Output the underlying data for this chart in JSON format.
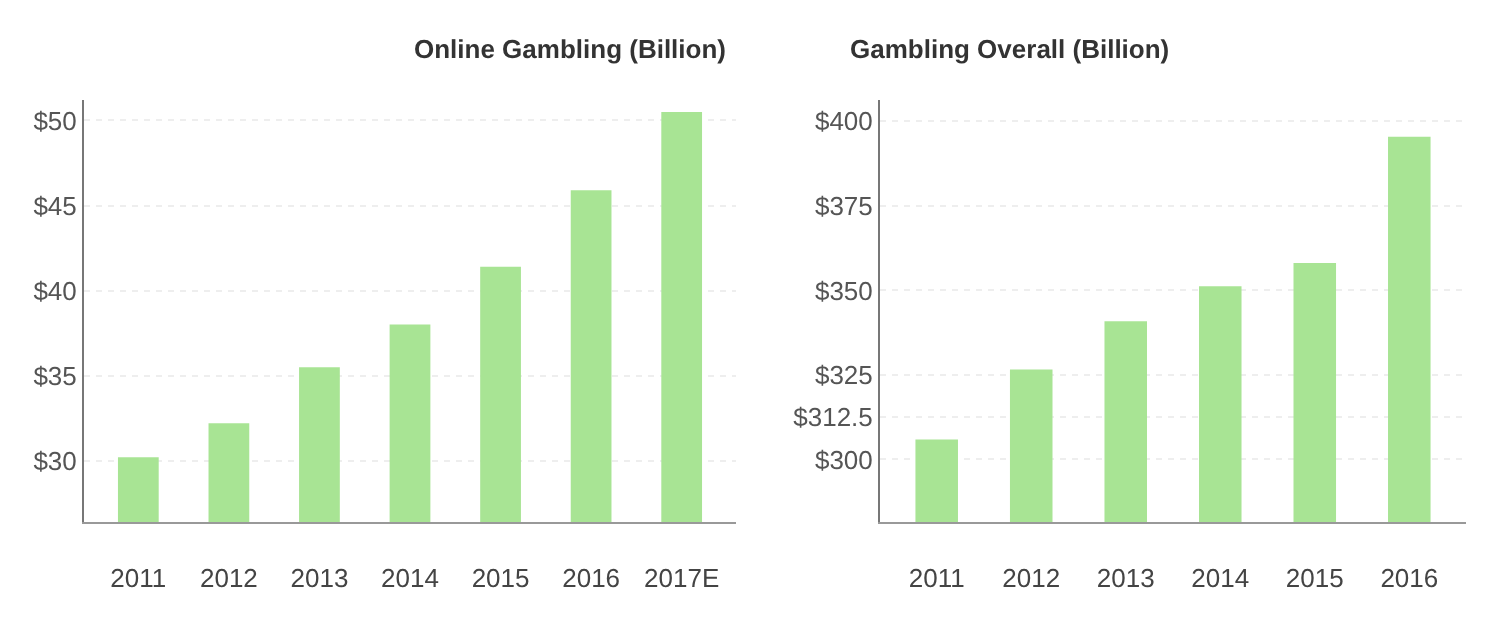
{
  "chart_data": [
    {
      "type": "bar",
      "title": "Online Gambling (Billion)",
      "categories": [
        "2011",
        "2012",
        "2013",
        "2014",
        "2015",
        "2016",
        "2017E"
      ],
      "values": [
        30.2,
        32.2,
        35.5,
        38.0,
        41.4,
        45.9,
        50.5
      ],
      "color": "#a8e494",
      "ylim": [
        26.4,
        51.2
      ],
      "yticks": [
        {
          "value": 30,
          "label": "$30"
        },
        {
          "value": 35,
          "label": "$35"
        },
        {
          "value": 40,
          "label": "$40"
        },
        {
          "value": 45,
          "label": "$45"
        },
        {
          "value": 50,
          "label": "$50"
        }
      ],
      "grid": "y",
      "legend": false
    },
    {
      "type": "bar",
      "title": "Gambling Overall (Billion)",
      "categories": [
        "2011",
        "2012",
        "2013",
        "2014",
        "2015",
        "2016"
      ],
      "values": [
        305.9,
        326.6,
        340.9,
        351.2,
        358.1,
        395.4
      ],
      "color": "#a8e494",
      "ylim": [
        281.5,
        406.3
      ],
      "yticks": [
        {
          "value": 300,
          "label": "$300"
        },
        {
          "value": 312.5,
          "label": "$312.5"
        },
        {
          "value": 325,
          "label": "$325"
        },
        {
          "value": 350,
          "label": "$350"
        },
        {
          "value": 375,
          "label": "$375"
        },
        {
          "value": 400,
          "label": "$400"
        }
      ],
      "grid": "y",
      "legend": false
    }
  ]
}
